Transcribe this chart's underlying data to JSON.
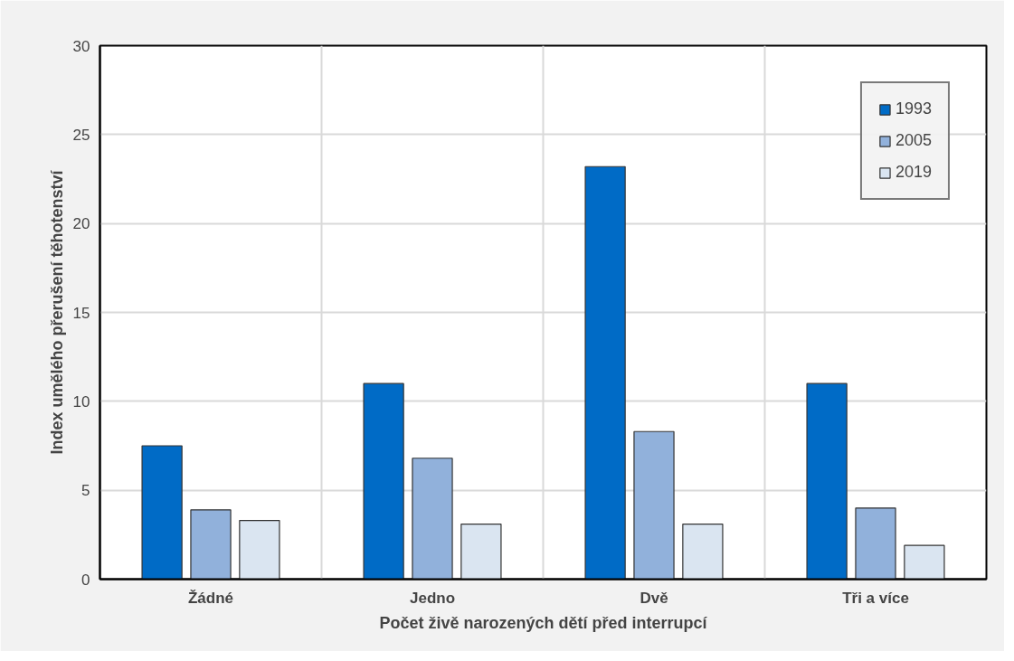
{
  "chart_data": {
    "type": "bar",
    "xlabel": "Počet živě narozených dětí před interrupcí",
    "ylabel": "Index umělého přerušení těhotenství",
    "categories": [
      "Žádné",
      "Jedno",
      "Dvě",
      "Tři a více"
    ],
    "series": [
      {
        "name": "1993",
        "color": "#006bc6",
        "values": [
          7.5,
          11.0,
          23.2,
          11.0
        ]
      },
      {
        "name": "2005",
        "color": "#91b1db",
        "values": [
          3.9,
          6.8,
          8.3,
          4.0
        ]
      },
      {
        "name": "2019",
        "color": "#dae5f1",
        "values": [
          3.3,
          3.1,
          3.1,
          1.9
        ]
      }
    ],
    "ylim": [
      0,
      30
    ],
    "yticks": [
      0,
      5,
      10,
      15,
      20,
      25,
      30
    ],
    "grid": true,
    "legend": "top right"
  }
}
